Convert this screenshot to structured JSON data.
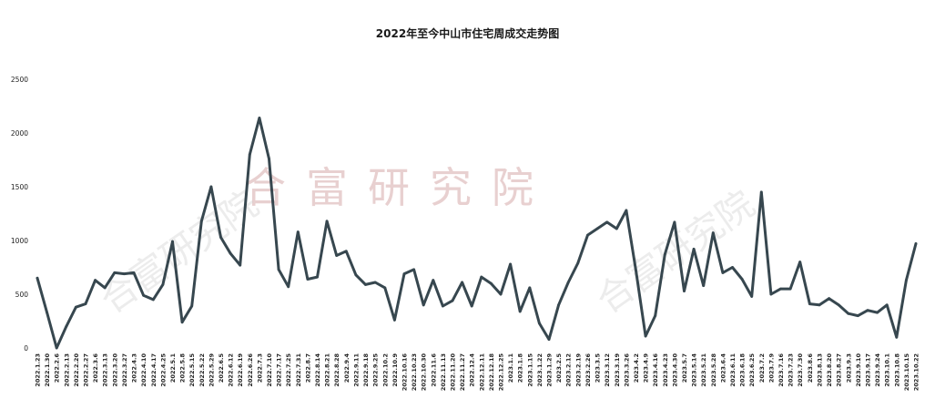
{
  "chart_data": {
    "type": "line",
    "title": "2022年至今中山市住宅周成交走势图",
    "xlabel": "",
    "ylabel": "",
    "ylim": [
      0,
      2500
    ],
    "yticks": [
      0,
      500,
      1000,
      1500,
      2000,
      2500
    ],
    "grid": false,
    "legend": "none",
    "line_color": "#37474f",
    "watermark": "合富研究院",
    "x": [
      "2022.1.23",
      "2022.1.30",
      "2022.2.6",
      "2022.2.13",
      "2022.2.20",
      "2022.2.27",
      "2022.3.6",
      "2022.3.13",
      "2022.3.20",
      "2022.3.27",
      "2022.4.3",
      "2022.4.10",
      "2022.4.17",
      "2022.4.25",
      "2022.5.1",
      "2022.5.8",
      "2022.5.15",
      "2022.5.22",
      "2022.5.29",
      "2022.6.5",
      "2022.6.12",
      "2022.6.19",
      "2022.6.26",
      "2022.7.3",
      "2022.7.10",
      "2022.7.17",
      "2022.7.25",
      "2022.7.31",
      "2022.8.7",
      "2022.8.14",
      "2022.8.21",
      "2022.8.28",
      "2022.9.4",
      "2022.9.11",
      "2022.9.18",
      "2022.9.25",
      "2022.10.2",
      "2022.10.9",
      "2022.10.16",
      "2022.10.23",
      "2022.10.30",
      "2022.11.6",
      "2022.11.13",
      "2022.11.20",
      "2022.11.27",
      "2022.12.4",
      "2022.12.11",
      "2022.12.18",
      "2022.12.25",
      "2023.1.1",
      "2023.1.8",
      "2023.1.15",
      "2023.1.22",
      "2023.1.29",
      "2023.2.5",
      "2023.2.12",
      "2023.2.19",
      "2023.2.26",
      "2023.3.5",
      "2023.3.12",
      "2023.3.19",
      "2023.3.26",
      "2023.4.2",
      "2023.4.9",
      "2023.4.16",
      "2023.4.23",
      "2023.4.30",
      "2023.5.7",
      "2023.5.14",
      "2023.5.21",
      "2023.5.28",
      "2023.6.4",
      "2023.6.11",
      "2023.6.18",
      "2023.6.25",
      "2023.7.2",
      "2023.7.9",
      "2023.7.16",
      "2023.7.23",
      "2023.7.30",
      "2023.8.6",
      "2023.8.13",
      "2023.8.20",
      "2023.8.27",
      "2023.9.3",
      "2023.9.10",
      "2023.9.17",
      "2023.9.24",
      "2023.10.1",
      "2023.10.8",
      "2023.10.15",
      "2023.10.22"
    ],
    "y": [
      650,
      330,
      0,
      200,
      380,
      410,
      630,
      560,
      700,
      690,
      700,
      490,
      450,
      590,
      990,
      240,
      390,
      1180,
      1500,
      1030,
      880,
      770,
      1800,
      2140,
      1760,
      730,
      570,
      1080,
      640,
      660,
      1180,
      860,
      900,
      680,
      590,
      610,
      560,
      260,
      690,
      730,
      400,
      630,
      390,
      440,
      610,
      390,
      660,
      600,
      500,
      780,
      340,
      560,
      230,
      80,
      400,
      610,
      790,
      1050,
      1110,
      1170,
      1110,
      1280,
      720,
      110,
      300,
      870,
      1170,
      530,
      920,
      580,
      1070,
      700,
      750,
      640,
      480,
      1450,
      500,
      550,
      550,
      800,
      410,
      400,
      460,
      400,
      320,
      300,
      350,
      330,
      400,
      100,
      630,
      970
    ]
  }
}
